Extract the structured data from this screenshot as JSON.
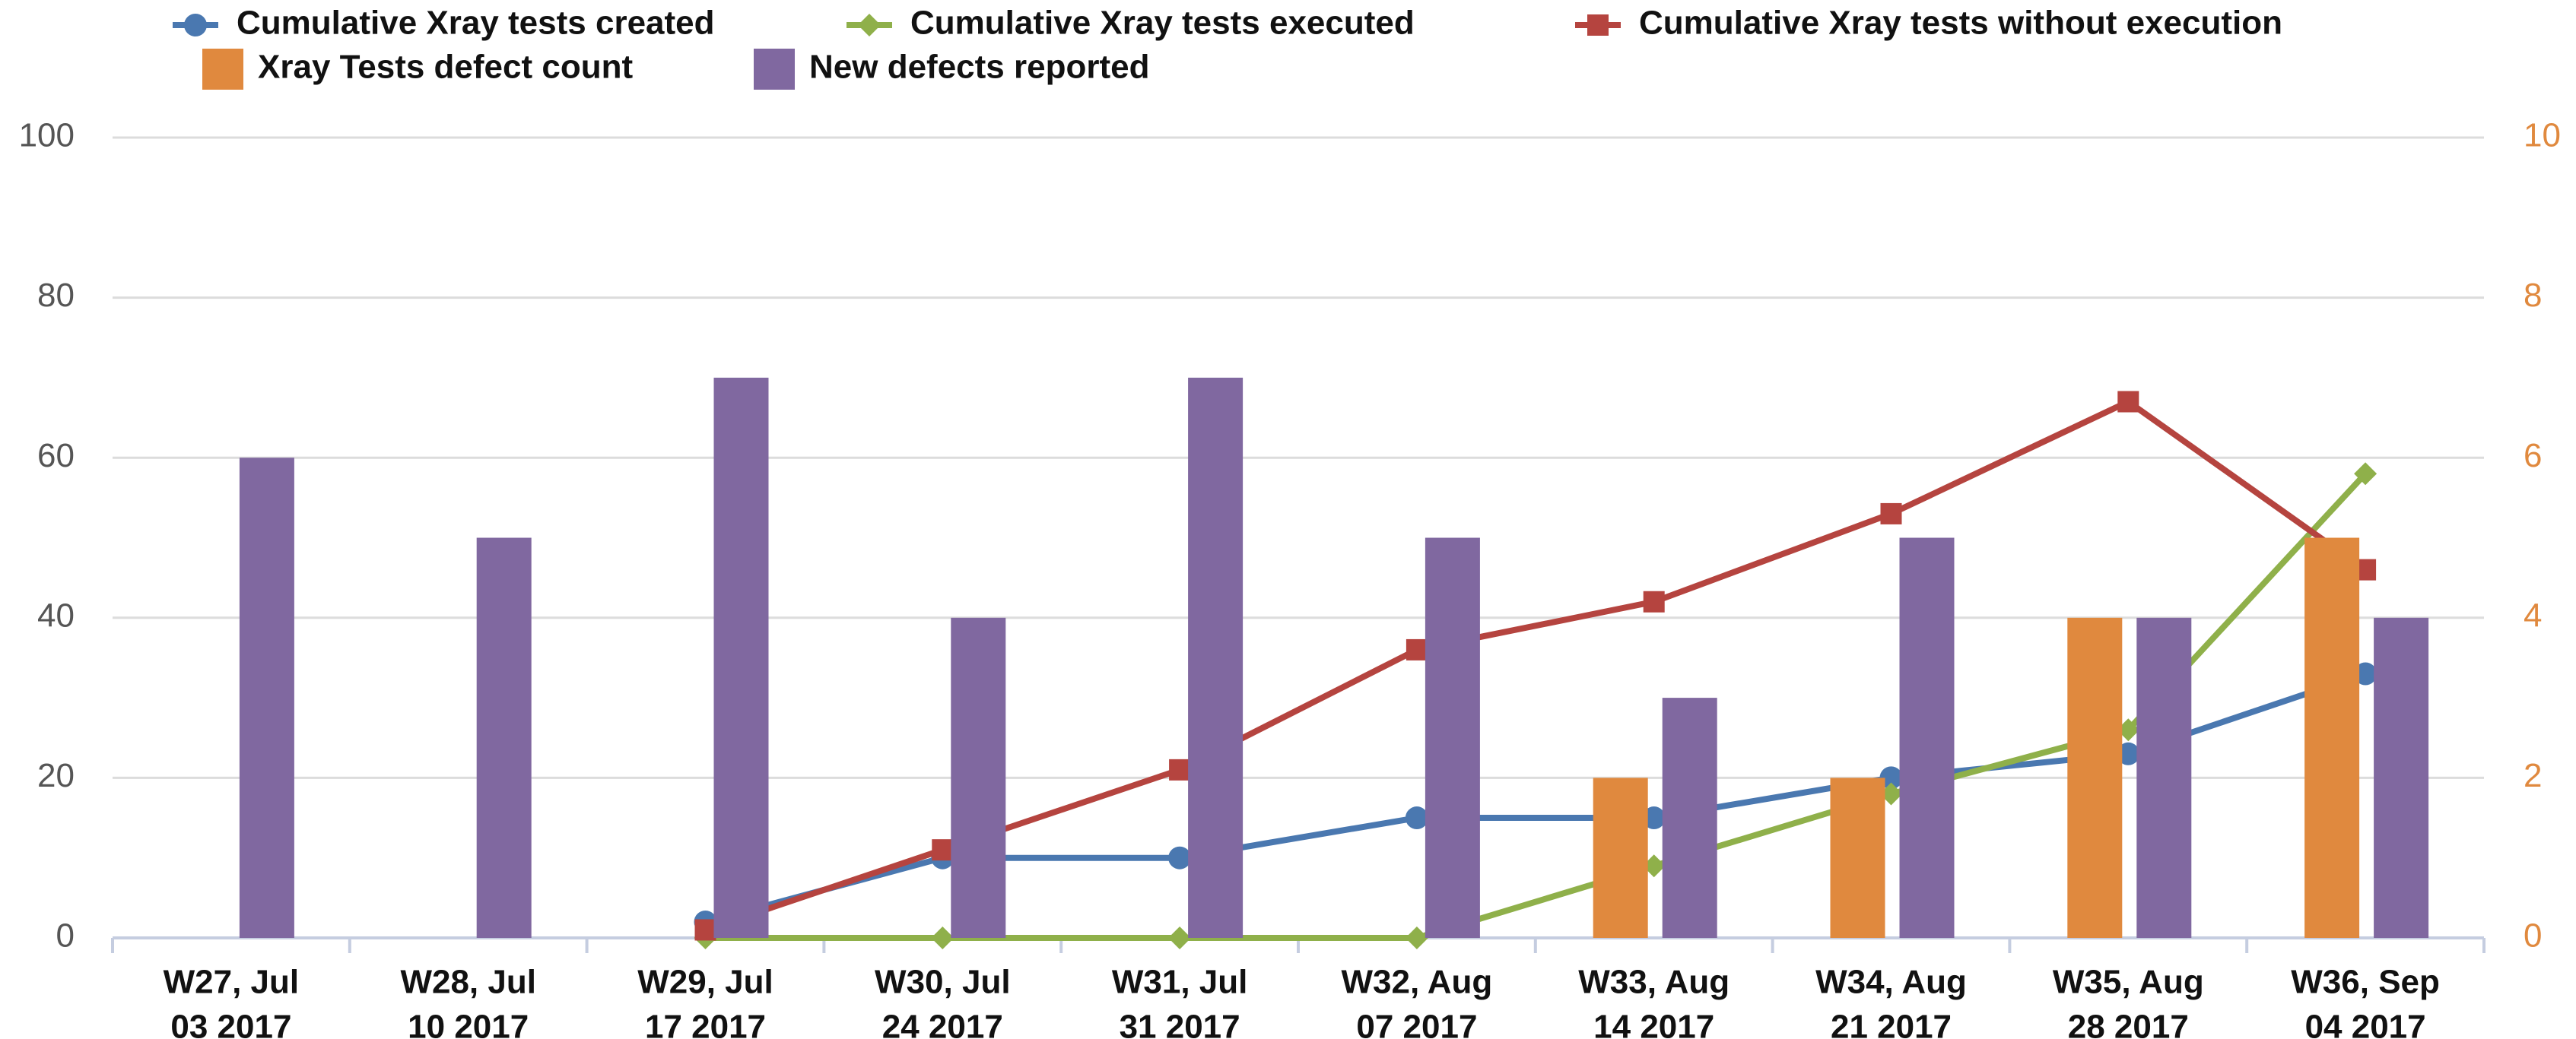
{
  "chart_data": {
    "type": "combo",
    "categories": [
      [
        "W27, Jul",
        "03 2017"
      ],
      [
        "W28, Jul",
        "10 2017"
      ],
      [
        "W29, Jul",
        "17 2017"
      ],
      [
        "W30, Jul",
        "24 2017"
      ],
      [
        "W31, Jul",
        "31 2017"
      ],
      [
        "W32, Aug",
        "07 2017"
      ],
      [
        "W33, Aug",
        "14 2017"
      ],
      [
        "W34, Aug",
        "21 2017"
      ],
      [
        "W35, Aug",
        "28 2017"
      ],
      [
        "W36, Sep",
        "04 2017"
      ]
    ],
    "series": [
      {
        "name": "Cumulative Xray tests created",
        "type": "line",
        "marker": "circle",
        "color": "#4a78b0",
        "values": [
          null,
          null,
          2,
          10,
          10,
          15,
          15,
          20,
          23,
          33
        ]
      },
      {
        "name": "Cumulative Xray tests executed",
        "type": "line",
        "marker": "diamond",
        "color": "#8fb04a",
        "values": [
          null,
          null,
          0,
          0,
          0,
          0,
          9,
          18,
          26,
          58
        ]
      },
      {
        "name": "Cumulative Xray tests without execution",
        "type": "line",
        "marker": "square",
        "color": "#b5443f",
        "values": [
          null,
          null,
          1,
          11,
          21,
          36,
          42,
          53,
          67,
          46
        ]
      },
      {
        "name": "Xray Tests defect count",
        "type": "bar",
        "axis": "y2",
        "color": "#e0893e",
        "values": [
          null,
          null,
          null,
          null,
          null,
          null,
          2,
          2,
          4,
          5
        ]
      },
      {
        "name": "New defects reported",
        "type": "bar",
        "axis": "y2",
        "color": "#8068a0",
        "values": [
          6,
          5,
          7,
          4,
          7,
          5,
          3,
          5,
          4,
          4
        ]
      }
    ],
    "ylim": [
      0,
      100
    ],
    "yticks": [
      0,
      20,
      40,
      60,
      80,
      100
    ],
    "y2lim": [
      0,
      10
    ],
    "y2ticks": [
      0,
      2,
      4,
      6,
      8,
      10
    ],
    "y2color": "#e0893e",
    "grid": true,
    "legend": "top"
  }
}
